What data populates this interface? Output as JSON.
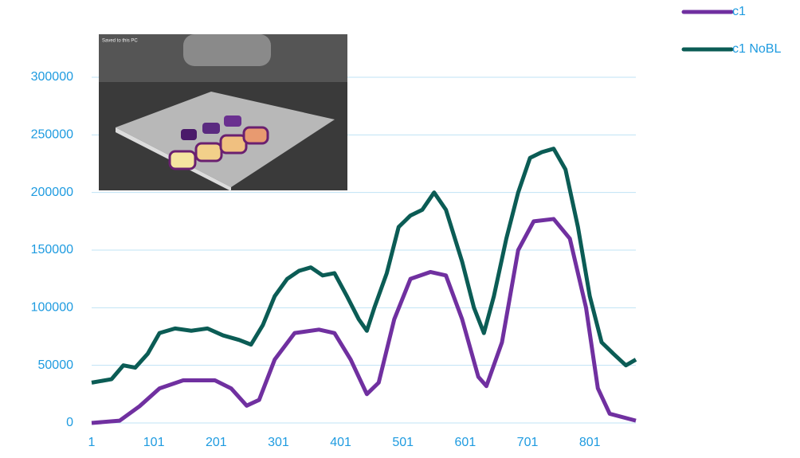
{
  "chart_data": {
    "type": "line",
    "series": [
      {
        "name": "c1",
        "color": "#7030a0",
        "x": [
          1,
          46,
          78,
          110,
          148,
          199,
          225,
          250,
          270,
          295,
          327,
          366,
          391,
          417,
          443,
          462,
          487,
          513,
          545,
          570,
          596,
          622,
          635,
          660,
          686,
          711,
          743,
          769,
          795,
          814,
          833,
          875
        ],
        "values": [
          0,
          2000,
          14500,
          30000,
          37000,
          37000,
          30000,
          15000,
          20000,
          55000,
          78000,
          81000,
          78000,
          55000,
          25000,
          35000,
          90000,
          125000,
          131000,
          128000,
          90000,
          40000,
          32000,
          70000,
          150000,
          175000,
          177000,
          160000,
          100000,
          30000,
          8000,
          2000
        ]
      },
      {
        "name": "c1 NoBL",
        "color": "#0b5c55",
        "x": [
          1,
          33,
          52,
          71,
          91,
          110,
          135,
          161,
          187,
          212,
          238,
          257,
          276,
          295,
          315,
          334,
          353,
          372,
          391,
          411,
          430,
          443,
          455,
          475,
          494,
          513,
          532,
          551,
          570,
          596,
          615,
          631,
          647,
          667,
          686,
          705,
          724,
          743,
          762,
          782,
          801,
          820,
          839,
          859,
          875
        ],
        "values": [
          35000,
          38000,
          50000,
          48000,
          60000,
          78000,
          82000,
          80000,
          82000,
          76000,
          72000,
          68000,
          85000,
          110000,
          125000,
          132000,
          135000,
          128000,
          130000,
          110000,
          90000,
          80000,
          100000,
          130000,
          170000,
          180000,
          185000,
          200000,
          185000,
          140000,
          100000,
          78000,
          110000,
          160000,
          200000,
          230000,
          235000,
          238000,
          220000,
          170000,
          110000,
          70000,
          60000,
          50000,
          55000
        ]
      }
    ],
    "xlim": [
      1,
      875
    ],
    "xticks": [
      1,
      101,
      201,
      301,
      401,
      501,
      601,
      701,
      801
    ],
    "ylim": [
      0,
      300000
    ],
    "yticks": [
      0,
      50000,
      100000,
      150000,
      200000,
      250000,
      300000
    ],
    "grid": true,
    "legend": "top-right",
    "inset_caption": "Saved to this PC"
  }
}
